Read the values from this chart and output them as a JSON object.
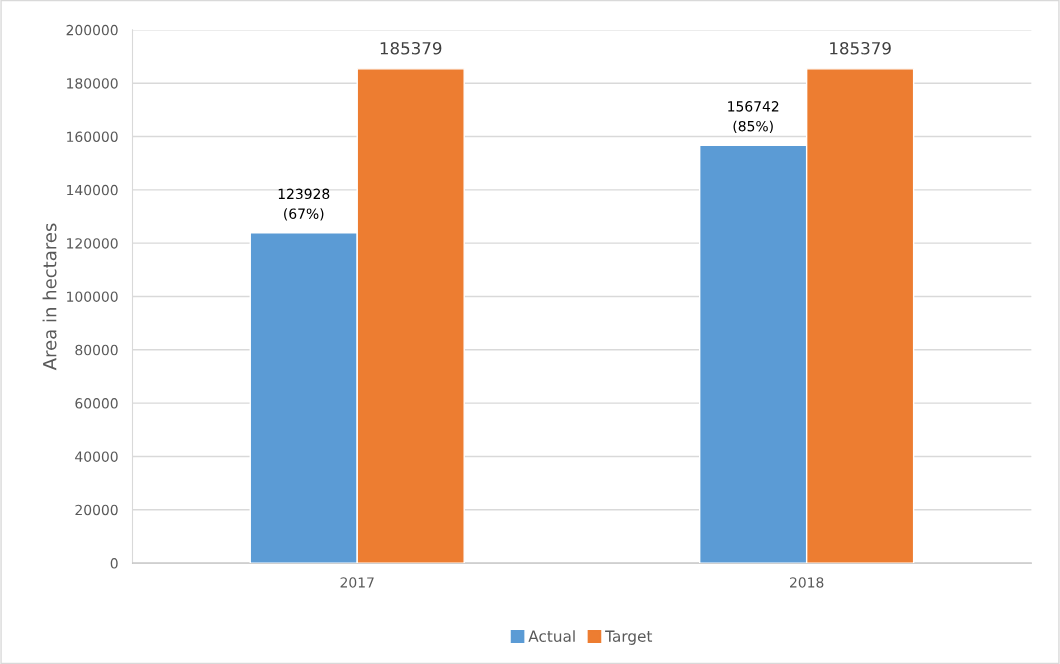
{
  "chart_data": {
    "type": "bar",
    "ylabel": "Area in hectares",
    "categories": [
      "2017",
      "2018"
    ],
    "series": [
      {
        "name": "Actual",
        "color": "#5b9bd5",
        "values": [
          123928,
          156742
        ],
        "value_labels": [
          "123928\n(67%)",
          "156742\n(85%)"
        ]
      },
      {
        "name": "Target",
        "color": "#ed7d31",
        "values": [
          185379,
          185379
        ],
        "value_labels": [
          "185379",
          "185379"
        ]
      }
    ],
    "ylim": [
      0,
      200000
    ],
    "yticks": [
      0,
      20000,
      40000,
      60000,
      80000,
      100000,
      120000,
      140000,
      160000,
      180000,
      200000
    ],
    "grid": "y",
    "legend": "bottom"
  }
}
